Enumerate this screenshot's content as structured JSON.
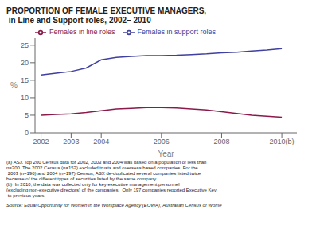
{
  "chart_data": {
    "type": "line",
    "title": "PROPORTION OF FEMALE EXECUTIVE MANAGERS,",
    "subtitle": " in Line and Support roles, 2002– 2010",
    "x_label": "Year",
    "y_label": "%",
    "xlim": [
      2001.8,
      2010.5
    ],
    "xticks": [
      2002,
      2003,
      2004,
      2006,
      2008,
      {
        "value": 2010,
        "label": "2010(b)"
      }
    ],
    "ylim": [
      0,
      27
    ],
    "yticks": [
      0,
      5,
      10,
      15,
      20,
      25
    ],
    "legend": "upper left",
    "x": [
      2002,
      2002.5,
      2003,
      2003.5,
      2004,
      2004.5,
      2005,
      2005.5,
      2006,
      2006.5,
      2007,
      2007.5,
      2008,
      2008.5,
      2009,
      2009.5,
      2010
    ],
    "series": [
      {
        "name": "Females in line roles",
        "color": "#8B1A4A",
        "values": [
          5.0,
          5.2,
          5.4,
          5.8,
          6.3,
          6.8,
          7.0,
          7.2,
          7.2,
          7.1,
          6.8,
          6.5,
          6.0,
          5.5,
          5.0,
          4.7,
          4.4
        ]
      },
      {
        "name": "Females in support roles",
        "color": "#4040A0",
        "values": [
          16.5,
          17.0,
          17.5,
          18.5,
          20.8,
          21.5,
          21.8,
          22.0,
          22.0,
          22.1,
          22.3,
          22.5,
          22.8,
          23.0,
          23.3,
          23.6,
          24.0
        ]
      }
    ],
    "notes": [
      "(a) ASX Top 200 Census data for 2002, 2003 and 2004 was based on a population of less than",
      "n=200. The 2002 Census (n=152) excluded trusts and overseas based companies. For the",
      " 2003 (n=196) and 2004 (n=197) Census, ASX de-duplicated several companies listed twice",
      "because of the different types of securities listed by the same company.",
      "(b)  In 2010, the data was collected only for key executive management personnel",
      "(excluding non-executive directors) of the companies.  Only 197 companies reported Executive Key",
      " to previous years."
    ],
    "source": "Source: Equal Opportunity for Women in the Workplace Agency (EOWA), Australian Census of Wome"
  }
}
